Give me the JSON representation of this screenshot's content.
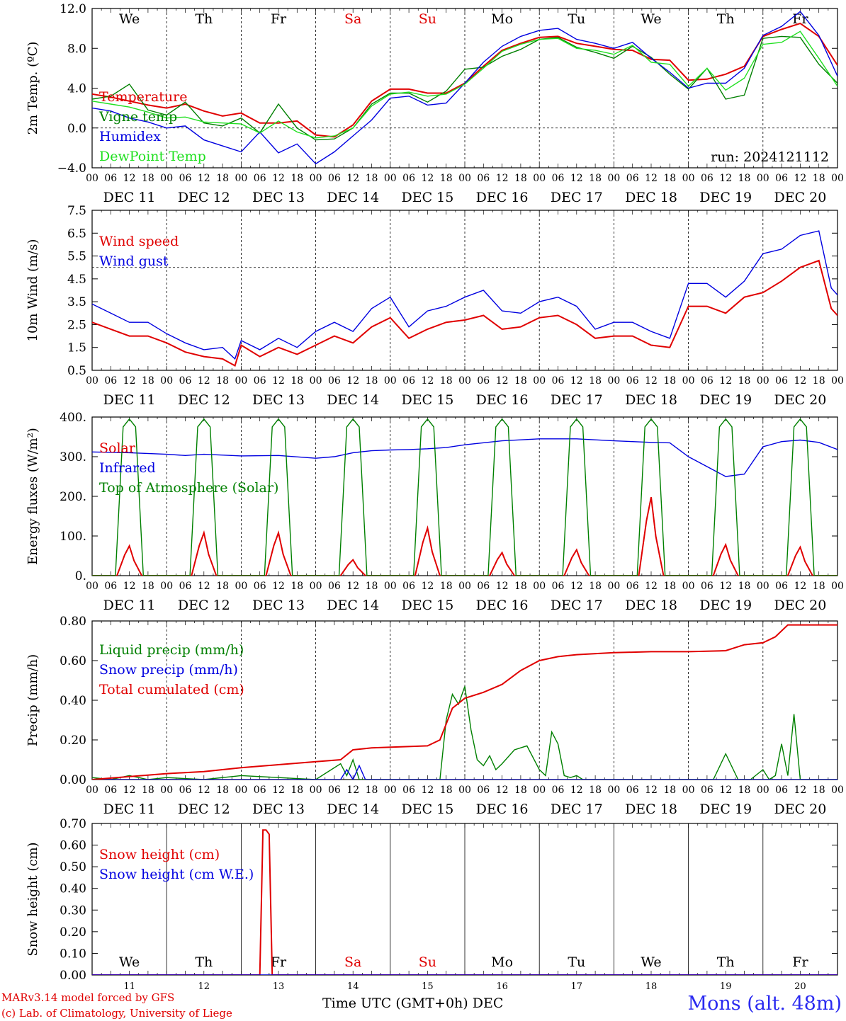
{
  "colors": {
    "red": "#e00000",
    "green": "#008000",
    "blue": "#0000e0",
    "lightgreen": "#20e020"
  },
  "footer": {
    "credit1": "MARv3.14 model forced by GFS",
    "credit2": "(c) Lab. of Climatology, University of Liege",
    "xlabel": "Time UTC (GMT+0h) DEC",
    "location": "Mons (alt. 48m)"
  },
  "chart_data": [
    {
      "type": "line",
      "ylabel": "2m Temp. (ºC)",
      "yticks": [
        "12.0",
        "8.0",
        "4.0",
        "0.0",
        "−4.0"
      ],
      "ylim": [
        -4,
        12
      ],
      "xlim_hours": [
        0,
        240
      ],
      "run": "run: 2024121112",
      "weekdays": [
        "We",
        "Th",
        "Fr",
        "Sa",
        "Su",
        "Mo",
        "Tu",
        "We",
        "Th",
        "Fr"
      ],
      "weekend_days": [
        "Sa",
        "Su"
      ],
      "date_labels": [
        "DEC 11",
        "DEC 12",
        "DEC 13",
        "DEC 14",
        "DEC 15",
        "DEC 16",
        "DEC 17",
        "DEC 18",
        "DEC 19",
        "DEC 20"
      ],
      "hour_ticks": [
        "00",
        "06",
        "12",
        "18"
      ],
      "ref_line": 0,
      "series": [
        {
          "name": "Temperature",
          "color": "red",
          "x": [
            0,
            6,
            12,
            18,
            24,
            30,
            36,
            42,
            48,
            54,
            60,
            66,
            72,
            78,
            84,
            90,
            96,
            102,
            108,
            114,
            120,
            126,
            132,
            138,
            144,
            150,
            156,
            162,
            168,
            174,
            180,
            186,
            192,
            198,
            204,
            210,
            216,
            222,
            228,
            234,
            240
          ],
          "y": [
            3.4,
            3.1,
            2.7,
            2.3,
            2.0,
            2.4,
            1.7,
            1.2,
            1.5,
            0.5,
            0.5,
            0.7,
            -0.7,
            -0.9,
            0.3,
            2.7,
            3.9,
            3.9,
            3.5,
            3.5,
            4.5,
            6.2,
            7.8,
            8.5,
            9.1,
            9.2,
            8.5,
            8.2,
            7.9,
            7.8,
            6.9,
            6.8,
            4.8,
            4.9,
            5.4,
            6.2,
            9.2,
            9.9,
            10.5,
            9.2,
            6.3
          ]
        },
        {
          "name": "Vigne temp",
          "color": "green",
          "x": [
            0,
            6,
            12,
            18,
            24,
            30,
            36,
            42,
            48,
            54,
            60,
            66,
            72,
            78,
            84,
            90,
            96,
            102,
            108,
            114,
            120,
            126,
            132,
            138,
            144,
            150,
            156,
            162,
            168,
            174,
            180,
            186,
            192,
            198,
            204,
            210,
            216,
            222,
            228,
            234,
            240
          ],
          "y": [
            2.9,
            3.2,
            4.4,
            1.8,
            1.3,
            2.6,
            0.5,
            0.2,
            1.0,
            -0.5,
            2.4,
            0.0,
            -1.2,
            -1.1,
            0.0,
            2.4,
            3.5,
            3.5,
            2.6,
            3.7,
            5.9,
            6.1,
            7.2,
            7.9,
            8.9,
            9.1,
            8.1,
            7.6,
            7.0,
            8.2,
            7.1,
            5.4,
            3.9,
            6.0,
            2.9,
            3.3,
            9.0,
            9.2,
            9.1,
            6.4,
            4.5
          ]
        },
        {
          "name": "Humidex",
          "color": "blue",
          "x": [
            0,
            6,
            12,
            18,
            24,
            30,
            36,
            42,
            48,
            54,
            60,
            66,
            72,
            78,
            84,
            90,
            96,
            102,
            108,
            114,
            120,
            126,
            132,
            138,
            144,
            150,
            156,
            162,
            168,
            174,
            180,
            186,
            192,
            198,
            204,
            210,
            216,
            222,
            228,
            234,
            240
          ],
          "y": [
            2.0,
            1.7,
            1.0,
            0.6,
            0.0,
            0.2,
            -1.2,
            -1.8,
            -2.4,
            -0.4,
            -2.5,
            -1.6,
            -3.6,
            -2.4,
            -0.8,
            0.8,
            3.0,
            3.2,
            2.3,
            2.5,
            4.5,
            6.6,
            8.2,
            9.2,
            9.8,
            10.0,
            8.9,
            8.5,
            8.0,
            8.6,
            7.0,
            5.6,
            4.0,
            4.5,
            4.5,
            6.0,
            9.3,
            10.2,
            11.7,
            9.3,
            5.2
          ]
        },
        {
          "name": "DewPoint Temp",
          "color": "lightgreen",
          "x": [
            0,
            6,
            12,
            18,
            24,
            30,
            36,
            42,
            48,
            54,
            60,
            66,
            72,
            78,
            84,
            90,
            96,
            102,
            108,
            114,
            120,
            126,
            132,
            138,
            144,
            150,
            156,
            162,
            168,
            174,
            180,
            186,
            192,
            198,
            204,
            210,
            216,
            222,
            228,
            234,
            240
          ],
          "y": [
            2.7,
            2.4,
            2.1,
            1.6,
            1.0,
            1.1,
            0.6,
            0.5,
            0.4,
            -0.5,
            0.7,
            -0.4,
            -1.0,
            -0.8,
            0.0,
            2.2,
            3.4,
            3.6,
            3.2,
            3.4,
            4.4,
            6.0,
            7.7,
            8.4,
            8.9,
            9.0,
            8.0,
            7.8,
            7.4,
            8.3,
            6.6,
            6.4,
            4.2,
            6.0,
            3.8,
            5.0,
            8.4,
            8.6,
            9.7,
            7.0,
            4.2
          ]
        }
      ]
    },
    {
      "type": "line",
      "ylabel": "10m Wind (m/s)",
      "yticks": [
        "7.5",
        "6.5",
        "5.5",
        "4.5",
        "3.5",
        "2.5",
        "1.5",
        "0.5"
      ],
      "ylim": [
        0.5,
        7.5
      ],
      "ref_line": 5.0,
      "date_labels": [
        "DEC 11",
        "DEC 12",
        "DEC 13",
        "DEC 14",
        "DEC 15",
        "DEC 16",
        "DEC 17",
        "DEC 18",
        "DEC 19",
        "DEC 20"
      ],
      "series": [
        {
          "name": "Wind speed",
          "color": "red",
          "x": [
            0,
            6,
            12,
            18,
            24,
            30,
            36,
            42,
            46,
            48,
            54,
            60,
            66,
            72,
            78,
            84,
            90,
            96,
            102,
            108,
            114,
            120,
            126,
            132,
            138,
            144,
            150,
            156,
            162,
            168,
            174,
            180,
            186,
            192,
            198,
            204,
            210,
            216,
            222,
            228,
            234,
            238,
            240
          ],
          "y": [
            2.6,
            2.3,
            2.0,
            2.0,
            1.7,
            1.3,
            1.1,
            1.0,
            0.7,
            1.6,
            1.1,
            1.5,
            1.2,
            1.6,
            2.0,
            1.7,
            2.4,
            2.8,
            1.9,
            2.3,
            2.6,
            2.7,
            2.9,
            2.3,
            2.4,
            2.8,
            2.9,
            2.5,
            1.9,
            2.0,
            2.0,
            1.6,
            1.5,
            3.3,
            3.3,
            3.0,
            3.7,
            3.9,
            4.4,
            5.0,
            5.3,
            3.2,
            2.9
          ]
        },
        {
          "name": "Wind gust",
          "color": "blue",
          "x": [
            0,
            6,
            12,
            18,
            24,
            30,
            36,
            42,
            46,
            48,
            54,
            60,
            66,
            72,
            78,
            84,
            90,
            96,
            102,
            108,
            114,
            120,
            126,
            132,
            138,
            144,
            150,
            156,
            162,
            168,
            174,
            180,
            186,
            192,
            198,
            204,
            210,
            216,
            222,
            228,
            234,
            238,
            240
          ],
          "y": [
            3.4,
            3.0,
            2.6,
            2.6,
            2.1,
            1.7,
            1.4,
            1.5,
            1.0,
            1.8,
            1.4,
            1.9,
            1.5,
            2.2,
            2.6,
            2.2,
            3.2,
            3.7,
            2.4,
            3.1,
            3.3,
            3.7,
            4.0,
            3.1,
            3.0,
            3.5,
            3.7,
            3.3,
            2.3,
            2.6,
            2.6,
            2.2,
            1.9,
            4.3,
            4.3,
            3.7,
            4.4,
            5.6,
            5.8,
            6.4,
            6.6,
            4.1,
            3.8
          ]
        }
      ]
    },
    {
      "type": "line",
      "ylabel": "Energy fluxes (W/m²)",
      "yticks": [
        "400.",
        "300.",
        "200.",
        "100.",
        "0."
      ],
      "ylim": [
        0,
        400
      ],
      "date_labels": [
        "DEC 11",
        "DEC 12",
        "DEC 13",
        "DEC 14",
        "DEC 15",
        "DEC 16",
        "DEC 17",
        "DEC 18",
        "DEC 19",
        "DEC 20"
      ],
      "series": [
        {
          "name": "Solar",
          "color": "red",
          "daily_peak_hour": 12,
          "daily_peaks": [
            75,
            108,
            108,
            40,
            120,
            58,
            65,
            198,
            78,
            72
          ]
        },
        {
          "name": "Infrared",
          "color": "blue",
          "x": [
            0,
            12,
            24,
            30,
            36,
            48,
            60,
            72,
            78,
            84,
            90,
            96,
            102,
            108,
            114,
            120,
            132,
            144,
            156,
            168,
            174,
            180,
            186,
            192,
            198,
            204,
            210,
            216,
            222,
            228,
            234,
            240
          ],
          "y": [
            312,
            310,
            306,
            303,
            306,
            302,
            303,
            296,
            300,
            310,
            315,
            317,
            318,
            320,
            323,
            330,
            340,
            345,
            345,
            340,
            338,
            336,
            335,
            300,
            275,
            250,
            256,
            325,
            338,
            342,
            336,
            318
          ]
        },
        {
          "name": "Top of Atmosphere (Solar)",
          "color": "green",
          "daily_peak_hour": 12,
          "daily_peaks": [
            395,
            395,
            395,
            395,
            395,
            395,
            395,
            395,
            395,
            395
          ]
        }
      ]
    },
    {
      "type": "line",
      "ylabel": "Precip (mm/h)",
      "yticks": [
        "0.80",
        "0.60",
        "0.40",
        "0.20",
        "0.00"
      ],
      "ylim": [
        0,
        0.8
      ],
      "date_labels": [
        "DEC 11",
        "DEC 12",
        "DEC 13",
        "DEC 14",
        "DEC 15",
        "DEC 16",
        "DEC 17",
        "DEC 18",
        "DEC 19",
        "DEC 20"
      ],
      "series": [
        {
          "name": "Liquid precip (mm/h)",
          "color": "green",
          "x": [
            0,
            6,
            12,
            18,
            24,
            36,
            48,
            60,
            72,
            80,
            82,
            84,
            86,
            96,
            112,
            114,
            116,
            118,
            120,
            122,
            124,
            126,
            128,
            130,
            132,
            136,
            140,
            144,
            146,
            148,
            150,
            152,
            154,
            156,
            158,
            160,
            172,
            180,
            192,
            200,
            204,
            208,
            212,
            216,
            218,
            220,
            222,
            224,
            226,
            228,
            230,
            232,
            240
          ],
          "y": [
            0.01,
            0.0,
            0.02,
            0.0,
            0.01,
            0.0,
            0.02,
            0.01,
            0.0,
            0.08,
            0.02,
            0.1,
            0.0,
            0.0,
            0.0,
            0.3,
            0.43,
            0.38,
            0.47,
            0.25,
            0.1,
            0.07,
            0.12,
            0.05,
            0.08,
            0.15,
            0.17,
            0.05,
            0.02,
            0.24,
            0.18,
            0.02,
            0.01,
            0.02,
            0.0,
            0.0,
            0.0,
            0.0,
            0.0,
            0.0,
            0.13,
            0.0,
            0.0,
            0.05,
            0.0,
            0.02,
            0.18,
            0.02,
            0.33,
            0.0,
            0.0,
            0.0,
            0.0
          ]
        },
        {
          "name": "Snow precip (mm/h)",
          "color": "blue",
          "x": [
            0,
            80,
            82,
            84,
            86,
            88,
            90,
            240
          ],
          "y": [
            0,
            0,
            0.05,
            0.0,
            0.07,
            0.0,
            0,
            0
          ]
        },
        {
          "name": "Total cumulated (cm)",
          "color": "red",
          "x": [
            0,
            24,
            36,
            48,
            60,
            72,
            80,
            84,
            90,
            108,
            112,
            114,
            116,
            120,
            126,
            132,
            138,
            144,
            150,
            156,
            168,
            180,
            192,
            204,
            210,
            216,
            220,
            224,
            228,
            240
          ],
          "y": [
            0.0,
            0.03,
            0.04,
            0.06,
            0.075,
            0.09,
            0.1,
            0.15,
            0.16,
            0.17,
            0.2,
            0.28,
            0.36,
            0.41,
            0.44,
            0.48,
            0.55,
            0.6,
            0.62,
            0.63,
            0.64,
            0.645,
            0.645,
            0.65,
            0.68,
            0.69,
            0.72,
            0.78,
            0.78,
            0.78
          ]
        }
      ]
    },
    {
      "type": "line",
      "ylabel": "Snow height (cm)",
      "yticks": [
        "0.70",
        "0.60",
        "0.50",
        "0.40",
        "0.30",
        "0.20",
        "0.10",
        "0.00"
      ],
      "ylim": [
        0,
        0.7
      ],
      "weekdays": [
        "We",
        "Th",
        "Fr",
        "Sa",
        "Su",
        "Mo",
        "Tu",
        "We",
        "Th",
        "Fr"
      ],
      "weekend_days": [
        "Sa",
        "Su"
      ],
      "day_numbers": [
        "11",
        "12",
        "13",
        "14",
        "15",
        "16",
        "17",
        "18",
        "19",
        "20"
      ],
      "series": [
        {
          "name": "Snow height (cm)",
          "color": "red",
          "x": [
            0,
            54,
            55,
            56,
            57,
            58,
            240
          ],
          "y": [
            0,
            0,
            0.67,
            0.67,
            0.65,
            0,
            0
          ]
        },
        {
          "name": "Snow height (cm W.E.)",
          "color": "blue",
          "x": [
            0,
            240
          ],
          "y": [
            0,
            0
          ]
        }
      ]
    }
  ]
}
